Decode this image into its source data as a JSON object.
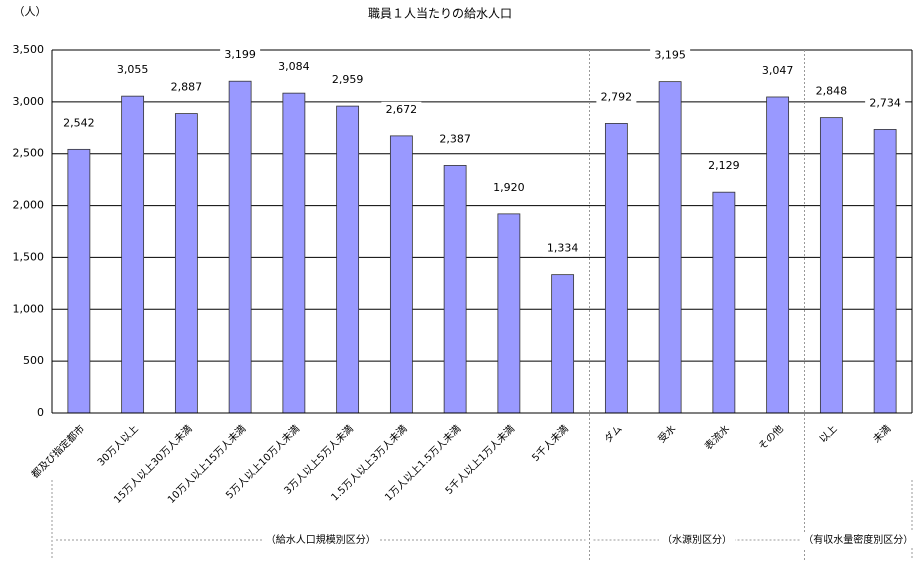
{
  "chart_data": {
    "type": "bar",
    "title": "職員１人当たりの給水人口",
    "y_label": "（人）",
    "categories": [
      "都及び指定都市",
      "30万人以上",
      "15万人以上30万人未満",
      "10万人以上15万人未満",
      "5万人以上10万人未満",
      "3万人以上5万人未満",
      "1.5万人以上3万人未満",
      "1万人以上1.5万人未満",
      "5千人以上1万人未満",
      "5千人未満",
      "ダム",
      "受水",
      "表流水",
      "その他",
      "以上",
      "未満"
    ],
    "values": [
      2542,
      3055,
      2887,
      3199,
      3084,
      2959,
      2672,
      2387,
      1920,
      1334,
      2792,
      3195,
      2129,
      3047,
      2848,
      2734
    ],
    "value_labels": [
      "2,542",
      "3,055",
      "2,887",
      "3,199",
      "3,084",
      "2,959",
      "2,672",
      "2,387",
      "1,920",
      "1,334",
      "2,792",
      "3,195",
      "2,129",
      "3,047",
      "2,848",
      "2,734"
    ],
    "groups": [
      "（給水人口規模別区分）",
      "（水源別区分）",
      "（有収水量密度別区分）"
    ],
    "color": "#9999ff",
    "ylim": [
      0,
      3500
    ],
    "yticks": [
      0,
      500,
      {
        "value": 1000,
        "label": "1,000"
      },
      {
        "value": 1500,
        "label": "1,500"
      },
      {
        "value": 2000,
        "label": "2,000"
      },
      {
        "value": 2500,
        "label": "2,500"
      },
      {
        "value": 3000,
        "label": "3,000"
      },
      {
        "value": 3500,
        "label": "3,500"
      }
    ],
    "grid": true
  }
}
